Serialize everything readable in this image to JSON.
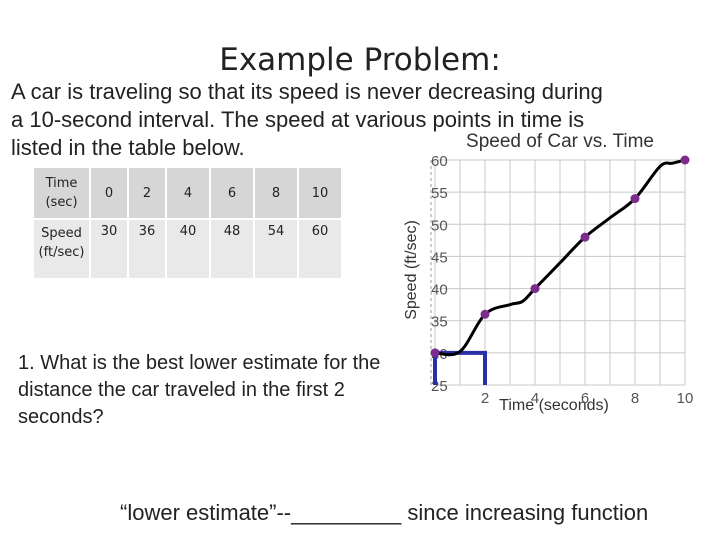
{
  "slide": {
    "title": "Example Problem:",
    "intro_lines": [
      "A car is traveling so that its speed is never decreasing during",
      "a 10-second interval.  The speed at various points in time is",
      "listed in the table below."
    ],
    "question": "1. What is the best lower estimate for the distance the car traveled in the first 2 seconds?",
    "footer": "“lower estimate”--_________ since increasing function"
  },
  "table": {
    "row_headers": [
      "Time (sec)",
      "Speed (ft/sec)"
    ],
    "times": [
      "0",
      "2",
      "4",
      "6",
      "8",
      "10"
    ],
    "speeds": [
      "30",
      "36",
      "40",
      "48",
      "54",
      "60"
    ]
  },
  "chart_data": {
    "type": "line",
    "title": "Speed of Car vs. Time",
    "xlabel": "Time (seconds)",
    "ylabel": "Speed (ft/sec)",
    "xlim": [
      0,
      10
    ],
    "ylim": [
      25,
      60
    ],
    "x_ticks": [
      2,
      4,
      6,
      8,
      10
    ],
    "y_ticks": [
      25,
      30,
      35,
      40,
      45,
      50,
      55,
      60
    ],
    "grid": true,
    "points": [
      {
        "x": 0,
        "y": 30
      },
      {
        "x": 2,
        "y": 36
      },
      {
        "x": 4,
        "y": 40
      },
      {
        "x": 6,
        "y": 48
      },
      {
        "x": 8,
        "y": 54
      },
      {
        "x": 10,
        "y": 60
      }
    ],
    "curve": [
      [
        0,
        30
      ],
      [
        1,
        30.2
      ],
      [
        2,
        36
      ],
      [
        3,
        37.5
      ],
      [
        3.5,
        38
      ],
      [
        4,
        40
      ],
      [
        5,
        44
      ],
      [
        6,
        48
      ],
      [
        7,
        51
      ],
      [
        8,
        54
      ],
      [
        9,
        59
      ],
      [
        9.5,
        59.5
      ],
      [
        10,
        60
      ]
    ],
    "highlight_rectangle": {
      "x0": 0,
      "x1": 2,
      "height": 30
    },
    "colors": {
      "curve": "#000000",
      "point": "#7b2c8c",
      "rect": "#2b2fa8",
      "grid": "#c8c8c8"
    }
  }
}
